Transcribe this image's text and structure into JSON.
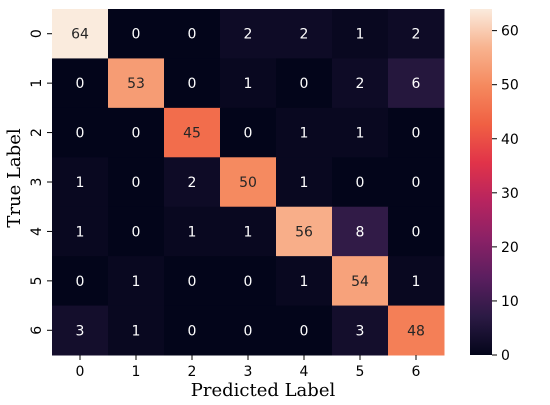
{
  "chart_data": {
    "type": "heatmap",
    "title": "",
    "xlabel": "Predicted Label",
    "ylabel": "True Label",
    "x_categories": [
      "0",
      "1",
      "2",
      "3",
      "4",
      "5",
      "6"
    ],
    "y_categories": [
      "0",
      "1",
      "2",
      "3",
      "4",
      "5",
      "6"
    ],
    "values": [
      [
        64,
        0,
        0,
        2,
        2,
        1,
        2
      ],
      [
        0,
        53,
        0,
        1,
        0,
        2,
        6
      ],
      [
        0,
        0,
        45,
        0,
        1,
        1,
        0
      ],
      [
        1,
        0,
        2,
        50,
        1,
        0,
        0
      ],
      [
        1,
        0,
        1,
        1,
        56,
        8,
        0
      ],
      [
        0,
        1,
        0,
        0,
        1,
        54,
        1
      ],
      [
        3,
        1,
        0,
        0,
        0,
        3,
        48
      ]
    ],
    "colorbar": {
      "range": [
        0,
        64
      ],
      "ticks": [
        0,
        10,
        20,
        30,
        40,
        50,
        60
      ],
      "colormap": "rocket",
      "colors": [
        "#03051a",
        "#2b1a44",
        "#5a1e5f",
        "#8a2166",
        "#b7245f",
        "#e13349",
        "#f06043",
        "#f5895e",
        "#f8b38f",
        "#faebdd"
      ]
    },
    "grid": false,
    "annotation_text_dark_above": 40
  }
}
